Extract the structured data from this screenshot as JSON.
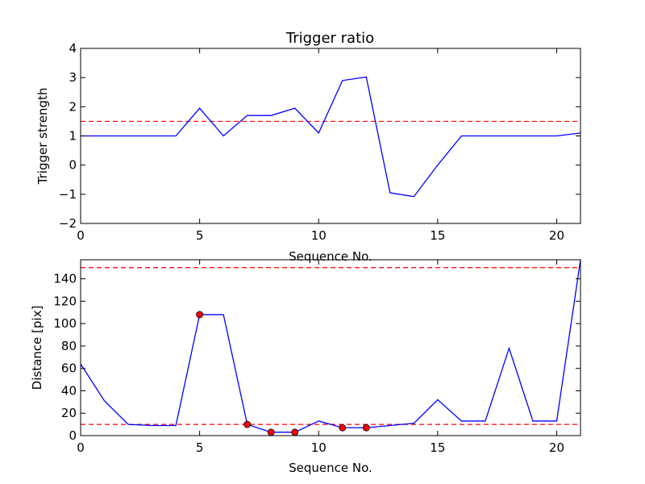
{
  "chart_data": [
    {
      "type": "line",
      "title": "Trigger ratio",
      "xlabel": "Sequence No.",
      "ylabel": "Trigger strength",
      "xlim": [
        0,
        21
      ],
      "ylim": [
        -2,
        4
      ],
      "xticks": [
        0,
        5,
        10,
        15,
        20
      ],
      "yticks": [
        -2,
        -1,
        0,
        1,
        2,
        3,
        4
      ],
      "ytick_labels": [
        "−2",
        "−1",
        "0",
        "1",
        "2",
        "3",
        "4"
      ],
      "grid": false,
      "series": [
        {
          "color": "#0000ff",
          "x": [
            0,
            1,
            2,
            3,
            4,
            5,
            6,
            7,
            8,
            9,
            10,
            11,
            12,
            13,
            14,
            15,
            16,
            17,
            18,
            19,
            20,
            21
          ],
          "y": [
            1.0,
            1.0,
            1.0,
            1.0,
            1.0,
            1.95,
            1.0,
            1.7,
            1.7,
            1.95,
            1.1,
            2.9,
            3.02,
            -0.95,
            -1.08,
            0.0,
            1.0,
            1.0,
            1.0,
            1.0,
            1.0,
            1.1
          ]
        }
      ],
      "threshold_lines": [
        {
          "y": 1.5,
          "color": "#ff0000",
          "style": "dashed"
        }
      ]
    },
    {
      "type": "line",
      "title": "",
      "xlabel": "Sequence No.",
      "ylabel": "Distance [pix]",
      "xlim": [
        0,
        21
      ],
      "ylim": [
        0,
        157
      ],
      "xticks": [
        0,
        5,
        10,
        15,
        20
      ],
      "yticks": [
        0,
        20,
        40,
        60,
        80,
        100,
        120,
        140
      ],
      "ytick_labels": [
        "0",
        "20",
        "40",
        "60",
        "80",
        "100",
        "120",
        "140"
      ],
      "grid": false,
      "series": [
        {
          "color": "#0000ff",
          "x": [
            0,
            1,
            2,
            3,
            4,
            5,
            6,
            7,
            8,
            9,
            10,
            11,
            12,
            13,
            14,
            15,
            16,
            17,
            18,
            19,
            20,
            21
          ],
          "y": [
            64,
            31,
            10,
            9,
            9,
            108,
            108,
            10,
            3,
            3,
            13,
            7,
            7,
            9,
            11,
            32,
            13,
            13,
            78,
            13,
            13,
            157
          ]
        }
      ],
      "markers": {
        "color": "#ff0000",
        "x": [
          5,
          7,
          8,
          9,
          11,
          12
        ],
        "y": [
          108,
          10,
          3,
          3,
          7,
          7
        ]
      },
      "threshold_lines": [
        {
          "y": 150,
          "color": "#ff0000",
          "style": "dashed"
        },
        {
          "y": 10,
          "color": "#ff0000",
          "style": "dashed"
        }
      ]
    }
  ]
}
